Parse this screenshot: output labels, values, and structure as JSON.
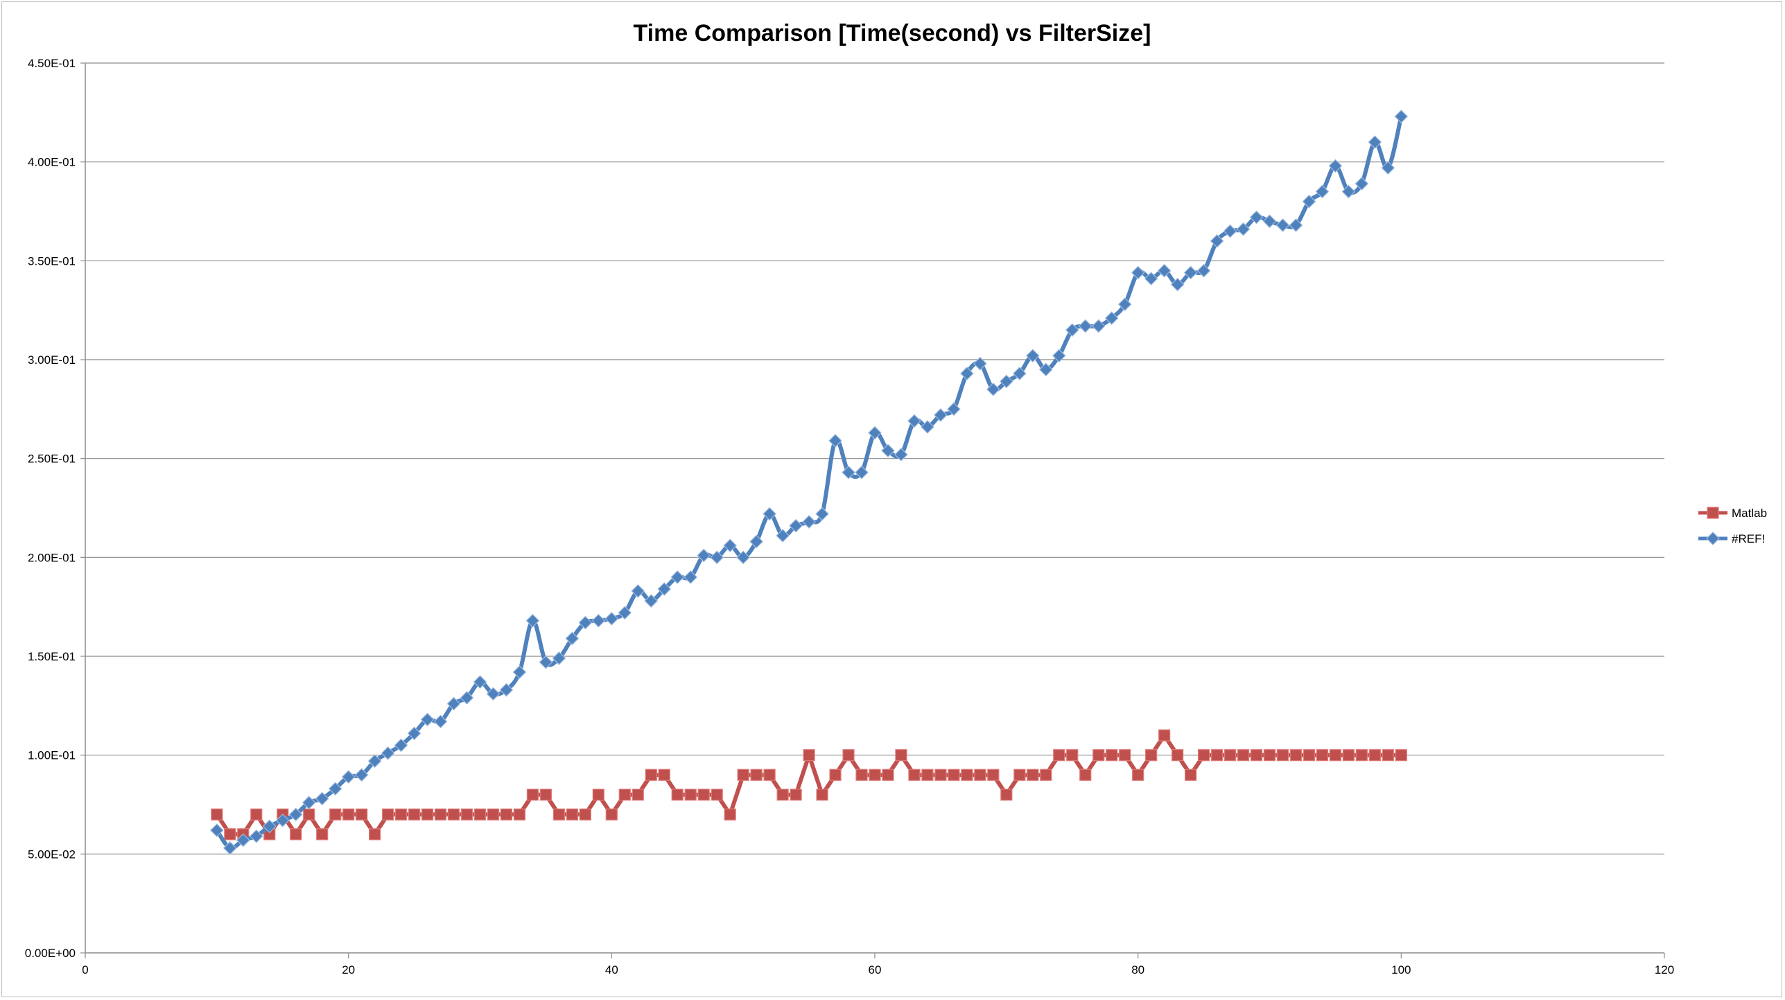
{
  "chart_data": {
    "type": "line",
    "title": "Time Comparison [Time(second) vs FilterSize]",
    "xlabel": "",
    "ylabel": "",
    "xlim": [
      0,
      120
    ],
    "ylim": [
      0,
      0.45
    ],
    "x_ticks": [
      0,
      20,
      40,
      60,
      80,
      100,
      120
    ],
    "x_tick_labels": [
      "0",
      "20",
      "40",
      "60",
      "80",
      "100",
      "120"
    ],
    "y_ticks": [
      0,
      0.05,
      0.1,
      0.15,
      0.2,
      0.25,
      0.3,
      0.35,
      0.4,
      0.45
    ],
    "y_tick_labels": [
      "0.00E+00",
      "5.00E-02",
      "1.00E-01",
      "1.50E-01",
      "2.00E-01",
      "2.50E-01",
      "3.00E-01",
      "3.50E-01",
      "4.00E-01",
      "4.50E-01"
    ],
    "grid": "horizontal",
    "legend_position": "right",
    "series": [
      {
        "name": "Matlab",
        "color": "#c0504d",
        "marker": "square",
        "x": [
          10,
          11,
          12,
          13,
          14,
          15,
          16,
          17,
          18,
          19,
          20,
          21,
          22,
          23,
          24,
          25,
          26,
          27,
          28,
          29,
          30,
          31,
          32,
          33,
          34,
          35,
          36,
          37,
          38,
          39,
          40,
          41,
          42,
          43,
          44,
          45,
          46,
          47,
          48,
          49,
          50,
          51,
          52,
          53,
          54,
          55,
          56,
          57,
          58,
          59,
          60,
          61,
          62,
          63,
          64,
          65,
          66,
          67,
          68,
          69,
          70,
          71,
          72,
          73,
          74,
          75,
          76,
          77,
          78,
          79,
          80,
          81,
          82,
          83,
          84,
          85,
          86,
          87,
          88,
          89,
          90,
          91,
          92,
          93,
          94,
          95,
          96,
          97,
          98,
          99,
          100
        ],
        "values": [
          0.07,
          0.06,
          0.06,
          0.07,
          0.06,
          0.07,
          0.06,
          0.07,
          0.06,
          0.07,
          0.07,
          0.07,
          0.06,
          0.07,
          0.07,
          0.07,
          0.07,
          0.07,
          0.07,
          0.07,
          0.07,
          0.07,
          0.07,
          0.07,
          0.08,
          0.08,
          0.07,
          0.07,
          0.07,
          0.08,
          0.07,
          0.08,
          0.08,
          0.09,
          0.09,
          0.08,
          0.08,
          0.08,
          0.08,
          0.07,
          0.09,
          0.09,
          0.09,
          0.08,
          0.08,
          0.1,
          0.08,
          0.09,
          0.1,
          0.09,
          0.09,
          0.09,
          0.1,
          0.09,
          0.09,
          0.09,
          0.09,
          0.09,
          0.09,
          0.09,
          0.08,
          0.09,
          0.09,
          0.09,
          0.1,
          0.1,
          0.09,
          0.1,
          0.1,
          0.1,
          0.09,
          0.1,
          0.11,
          0.1,
          0.09,
          0.1,
          0.1,
          0.1,
          0.1,
          0.1,
          0.1,
          0.1,
          0.1,
          0.1,
          0.1,
          0.1,
          0.1,
          0.1,
          0.1,
          0.1,
          0.1
        ]
      },
      {
        "name": "#REF!",
        "color": "#4f81bd",
        "marker": "diamond",
        "x": [
          10,
          11,
          12,
          13,
          14,
          15,
          16,
          17,
          18,
          19,
          20,
          21,
          22,
          23,
          24,
          25,
          26,
          27,
          28,
          29,
          30,
          31,
          32,
          33,
          34,
          35,
          36,
          37,
          38,
          39,
          40,
          41,
          42,
          43,
          44,
          45,
          46,
          47,
          48,
          49,
          50,
          51,
          52,
          53,
          54,
          55,
          56,
          57,
          58,
          59,
          60,
          61,
          62,
          63,
          64,
          65,
          66,
          67,
          68,
          69,
          70,
          71,
          72,
          73,
          74,
          75,
          76,
          77,
          78,
          79,
          80,
          81,
          82,
          83,
          84,
          85,
          86,
          87,
          88,
          89,
          90,
          91,
          92,
          93,
          94,
          95,
          96,
          97,
          98,
          99,
          100
        ],
        "values": [
          0.062,
          0.053,
          0.057,
          0.059,
          0.064,
          0.067,
          0.07,
          0.076,
          0.078,
          0.083,
          0.089,
          0.09,
          0.097,
          0.101,
          0.105,
          0.111,
          0.118,
          0.117,
          0.126,
          0.129,
          0.137,
          0.131,
          0.133,
          0.142,
          0.168,
          0.147,
          0.149,
          0.159,
          0.167,
          0.168,
          0.169,
          0.172,
          0.183,
          0.178,
          0.184,
          0.19,
          0.19,
          0.201,
          0.2,
          0.206,
          0.2,
          0.208,
          0.222,
          0.211,
          0.216,
          0.218,
          0.222,
          0.259,
          0.243,
          0.243,
          0.263,
          0.254,
          0.252,
          0.269,
          0.266,
          0.272,
          0.275,
          0.293,
          0.298,
          0.285,
          0.289,
          0.293,
          0.302,
          0.295,
          0.302,
          0.315,
          0.317,
          0.317,
          0.321,
          0.328,
          0.344,
          0.341,
          0.345,
          0.338,
          0.344,
          0.345,
          0.36,
          0.365,
          0.366,
          0.372,
          0.37,
          0.368,
          0.368,
          0.38,
          0.385,
          0.398,
          0.385,
          0.389,
          0.41,
          0.397,
          0.423
        ]
      }
    ]
  }
}
